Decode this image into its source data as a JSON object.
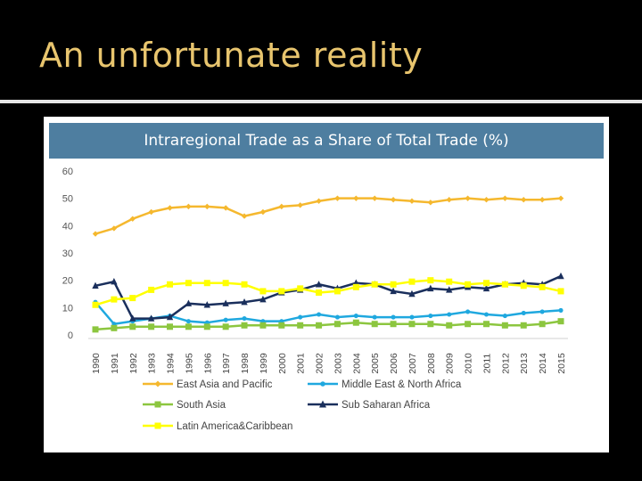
{
  "slide": {
    "title": "An unfortunate reality"
  },
  "chart_data": {
    "type": "line",
    "title": "Intraregional Trade as a Share of Total Trade (%)",
    "xlabel": "",
    "ylabel": "",
    "ylim": [
      0,
      60
    ],
    "yticks": [
      0,
      10,
      20,
      30,
      40,
      50,
      60
    ],
    "x": [
      "1990",
      "1991",
      "1992",
      "1993",
      "1994",
      "1995",
      "1996",
      "1997",
      "1998",
      "1999",
      "2000",
      "2001",
      "2002",
      "2003",
      "2004",
      "2005",
      "2006",
      "2007",
      "2008",
      "2009",
      "2010",
      "2011",
      "2012",
      "2013",
      "2014",
      "2015"
    ],
    "legend_position": "bottom",
    "grid": false,
    "series": [
      {
        "name": "East Asia and Pacific",
        "color": "#f5b82e",
        "marker": "diamond",
        "values": [
          37,
          39,
          42.5,
          45,
          46.5,
          47,
          47,
          46.5,
          43.5,
          45,
          47,
          47.5,
          49,
          50,
          50,
          50,
          49.5,
          49,
          48.5,
          49.5,
          50,
          49.5,
          50,
          49.5,
          49.5,
          50
        ]
      },
      {
        "name": "Middle East & North Africa",
        "color": "#1fa8df",
        "marker": "circle",
        "values": [
          12,
          4,
          5,
          6,
          7,
          5,
          4.5,
          5.5,
          6,
          5,
          5,
          6.5,
          7.5,
          6.5,
          7,
          6.5,
          6.5,
          6.5,
          7,
          7.5,
          8.5,
          7.5,
          7,
          8,
          8.5,
          9
        ]
      },
      {
        "name": "South Asia",
        "color": "#8cc63f",
        "marker": "square",
        "values": [
          2,
          2.5,
          3,
          3,
          3,
          3,
          3,
          3,
          3.5,
          3.5,
          3.5,
          3.5,
          3.5,
          4,
          4.5,
          4,
          4,
          4,
          4,
          3.5,
          4,
          4,
          3.5,
          3.5,
          4,
          5
        ]
      },
      {
        "name": "Sub Saharan Africa",
        "color": "#1a2f5c",
        "marker": "triangle",
        "values": [
          18,
          19.5,
          6,
          6,
          6.5,
          11.5,
          11,
          11.5,
          12,
          13,
          15.5,
          16.5,
          18.5,
          17,
          19,
          18.5,
          16,
          15,
          17,
          16.5,
          17.5,
          17,
          18.5,
          19,
          18.5,
          21.5
        ]
      },
      {
        "name": "Latin America&Caribbean",
        "color": "#ffff00",
        "marker": "square",
        "values": [
          11,
          13,
          13.5,
          16.5,
          18.5,
          19,
          19,
          19,
          18.5,
          16,
          16,
          17,
          15.5,
          16,
          17.5,
          18.5,
          18.5,
          19.5,
          20,
          19.5,
          18.5,
          19,
          18.5,
          18,
          17.5,
          16
        ]
      }
    ]
  }
}
